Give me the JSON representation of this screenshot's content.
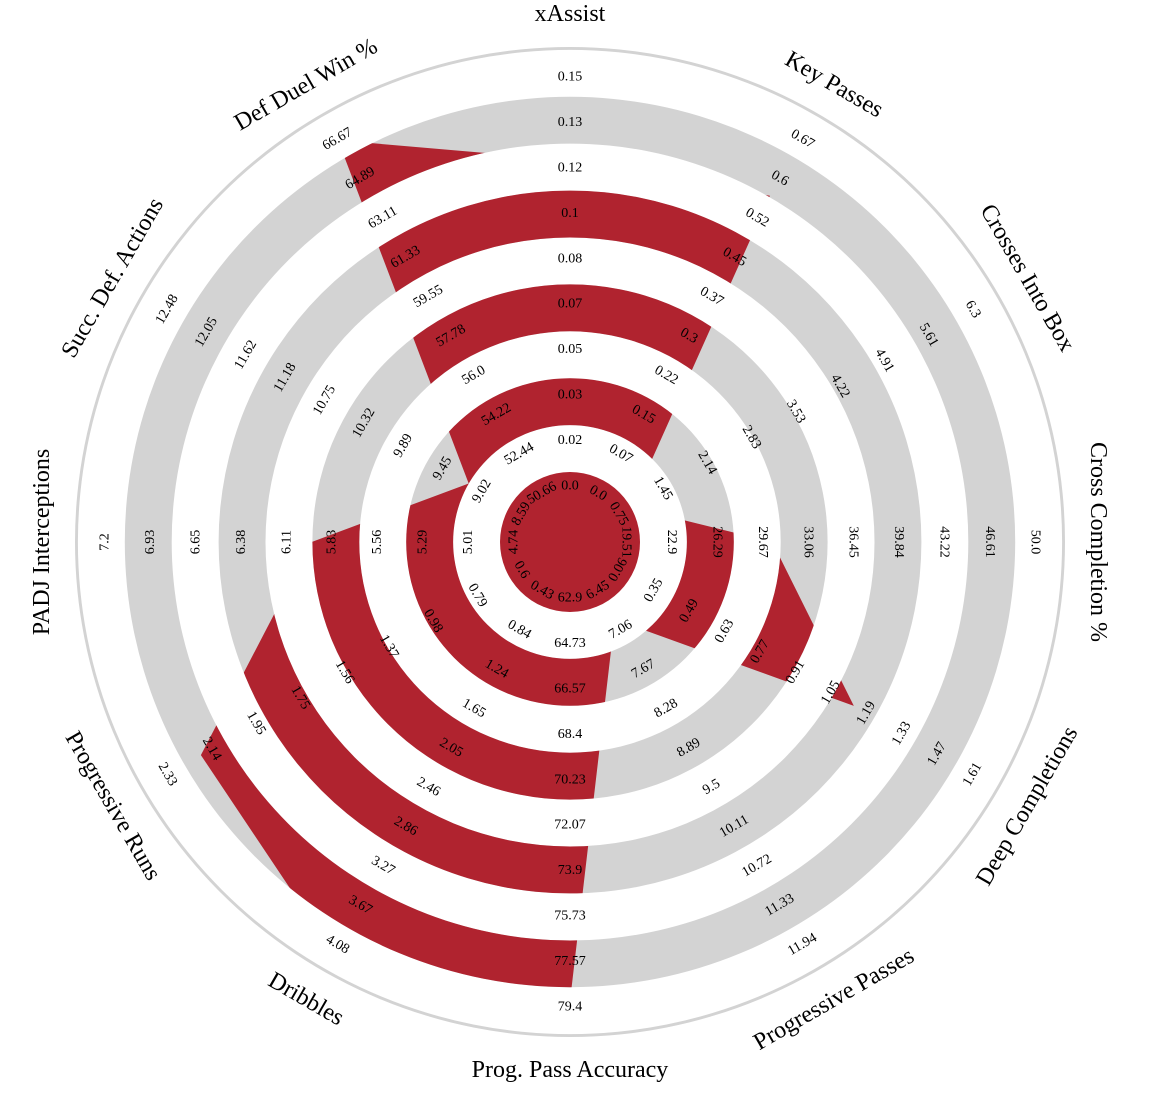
{
  "chart_data": {
    "type": "radar",
    "colors": {
      "ring": "#d3d3d3",
      "player": "#b0232f",
      "background": "#ffffff"
    },
    "params": [
      {
        "label": "xAssist",
        "ticks": [
          "0.0",
          "0.02",
          "0.03",
          "0.05",
          "0.07",
          "0.08",
          "0.1",
          "0.12",
          "0.13",
          "0.15"
        ],
        "value": 0.11
      },
      {
        "label": "Key Passes",
        "ticks": [
          "0.0",
          "0.07",
          "0.15",
          "0.22",
          "0.3",
          "0.37",
          "0.45",
          "0.52",
          "0.6",
          "0.67"
        ],
        "value": 0.52
      },
      {
        "label": "Crosses Into Box",
        "ticks": [
          "0.75",
          "1.45",
          "2.14",
          "2.83",
          "3.53",
          "4.22",
          "4.91",
          "5.61",
          "6.3"
        ],
        "value": 0.75
      },
      {
        "label": "Cross Completion %",
        "ticks": [
          "19.51",
          "22.9",
          "26.29",
          "29.67",
          "33.06",
          "36.45",
          "39.84",
          "43.22",
          "46.61",
          "50.0"
        ],
        "value": 29.0
      },
      {
        "label": "Deep Completions",
        "ticks": [
          "0.06",
          "0.35",
          "0.49",
          "0.63",
          "0.77",
          "0.91",
          "1.05",
          "1.19",
          "1.33",
          "1.47",
          "1.61"
        ],
        "value": 1.0
      },
      {
        "label": "Progressive Passes",
        "ticks": [
          "6.45",
          "7.06",
          "7.67",
          "8.28",
          "8.89",
          "9.5",
          "10.11",
          "10.72",
          "11.33",
          "11.94"
        ],
        "value": 6.7
      },
      {
        "label": "Prog. Pass Accuracy",
        "ticks": [
          "62.9",
          "64.73",
          "66.57",
          "68.4",
          "70.23",
          "72.07",
          "73.9",
          "75.73",
          "77.57",
          "79.4"
        ],
        "value": 78.0
      },
      {
        "label": "Dribbles",
        "ticks": [
          "0.43",
          "0.84",
          "1.24",
          "1.65",
          "2.05",
          "2.46",
          "2.86",
          "3.27",
          "3.67",
          "4.08"
        ],
        "value": 3.9
      },
      {
        "label": "Progressive Runs",
        "ticks": [
          "0.6",
          "0.79",
          "0.98",
          "1.37",
          "1.56",
          "1.75",
          "1.95",
          "2.14",
          "2.33"
        ],
        "value": 2.05
      },
      {
        "label": "PADJ Interceptions",
        "ticks": [
          "4.74",
          "5.01",
          "5.29",
          "5.56",
          "5.83",
          "6.11",
          "6.38",
          "6.65",
          "6.93",
          "7.2"
        ],
        "value": 5.83
      },
      {
        "label": "Succ. Def. Actions",
        "ticks": [
          "8.59",
          "9.02",
          "9.45",
          "9.89",
          "10.32",
          "10.75",
          "11.18",
          "11.62",
          "12.05",
          "12.48"
        ],
        "value": 9.02
      },
      {
        "label": "Def Duel Win %",
        "ticks": [
          "50.66",
          "52.44",
          "54.22",
          "56.0",
          "57.78",
          "59.55",
          "61.33",
          "63.11",
          "64.89",
          "66.67"
        ],
        "value": 65.5
      }
    ]
  }
}
